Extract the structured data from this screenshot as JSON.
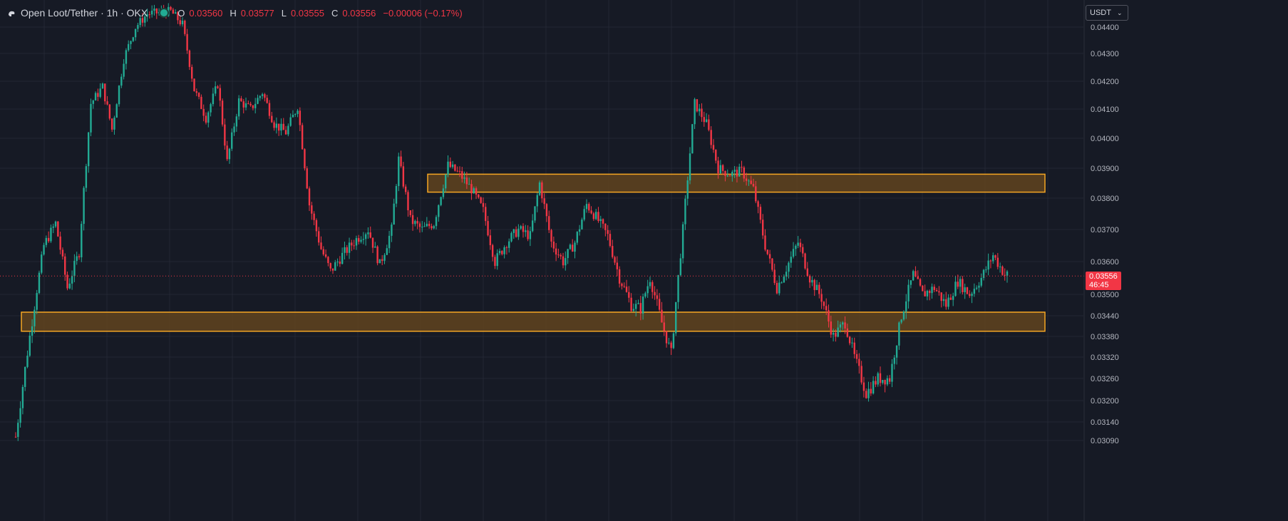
{
  "header": {
    "symbol": "Open Loot/Tether · 1h · OKX",
    "ohlc": [
      {
        "key": "O",
        "value": "0.03560"
      },
      {
        "key": "H",
        "value": "0.03577"
      },
      {
        "key": "L",
        "value": "0.03555"
      },
      {
        "key": "C",
        "value": "0.03556"
      }
    ],
    "change": "−0.00006 (−0.17%)",
    "logo_icon": "tradingview-cloud-icon",
    "status_color": "#22ab94"
  },
  "toolbar": {
    "currency_label": "USDT",
    "chevron_icon": "chevron-down-icon"
  },
  "last_price": {
    "value": "0.03556",
    "countdown": "46:45",
    "color": "#f23645"
  },
  "colors": {
    "up": "#22ab94",
    "down": "#f23645",
    "background": "#161a25",
    "zone_border": "#f5a623",
    "zone_fill": "#6b4a1d"
  },
  "chart_data": {
    "type": "candlestick",
    "interval": "1h",
    "y_axis": {
      "ticks": [
        0.044,
        0.043,
        0.042,
        0.041,
        0.04,
        0.039,
        0.038,
        0.037,
        0.036,
        0.035,
        0.0344,
        0.0338,
        0.0332,
        0.0326,
        0.032,
        0.0314,
        0.0309
      ],
      "tick_labels": [
        "0.04400",
        "0.04300",
        "0.04200",
        "0.04100",
        "0.04000",
        "0.03900",
        "0.03800",
        "0.03700",
        "0.03600",
        "0.03500",
        "0.03440",
        "0.03380",
        "0.03320",
        "0.03260",
        "0.03200",
        "0.03140",
        "0.03090"
      ]
    },
    "grid": true,
    "zones": [
      {
        "name": "resistance",
        "low": 0.0382,
        "high": 0.0388
      },
      {
        "name": "support",
        "low": 0.03395,
        "high": 0.0345
      }
    ],
    "last_price": 0.03556,
    "price_path": [
      [
        0,
        0.031
      ],
      [
        6,
        0.0338
      ],
      [
        12,
        0.0365
      ],
      [
        17,
        0.0372
      ],
      [
        22,
        0.0352
      ],
      [
        27,
        0.0363
      ],
      [
        32,
        0.0412
      ],
      [
        37,
        0.0418
      ],
      [
        41,
        0.0403
      ],
      [
        46,
        0.0428
      ],
      [
        51,
        0.044
      ],
      [
        56,
        0.0445
      ],
      [
        66,
        0.0446
      ],
      [
        71,
        0.0441
      ],
      [
        76,
        0.0417
      ],
      [
        81,
        0.0407
      ],
      [
        86,
        0.0419
      ],
      [
        90,
        0.0392
      ],
      [
        95,
        0.0413
      ],
      [
        100,
        0.041
      ],
      [
        105,
        0.0416
      ],
      [
        110,
        0.0405
      ],
      [
        115,
        0.0402
      ],
      [
        120,
        0.0411
      ],
      [
        125,
        0.0378
      ],
      [
        130,
        0.0364
      ],
      [
        134,
        0.0357
      ],
      [
        139,
        0.0362
      ],
      [
        145,
        0.0367
      ],
      [
        150,
        0.037
      ],
      [
        155,
        0.0359
      ],
      [
        160,
        0.037
      ],
      [
        163,
        0.0393
      ],
      [
        168,
        0.0373
      ],
      [
        173,
        0.037
      ],
      [
        178,
        0.0372
      ],
      [
        184,
        0.0391
      ],
      [
        189,
        0.0388
      ],
      [
        194,
        0.0383
      ],
      [
        199,
        0.0376
      ],
      [
        204,
        0.036
      ],
      [
        209,
        0.0366
      ],
      [
        214,
        0.037
      ],
      [
        219,
        0.0368
      ],
      [
        223,
        0.0385
      ],
      [
        228,
        0.0366
      ],
      [
        233,
        0.036
      ],
      [
        238,
        0.0366
      ],
      [
        243,
        0.0378
      ],
      [
        247,
        0.0374
      ],
      [
        252,
        0.0368
      ],
      [
        257,
        0.0355
      ],
      [
        262,
        0.0347
      ],
      [
        266,
        0.0346
      ],
      [
        270,
        0.0355
      ],
      [
        275,
        0.0342
      ],
      [
        279,
        0.0333
      ],
      [
        284,
        0.037
      ],
      [
        289,
        0.0412
      ],
      [
        294,
        0.0405
      ],
      [
        299,
        0.039
      ],
      [
        304,
        0.0388
      ],
      [
        309,
        0.0389
      ],
      [
        314,
        0.0383
      ],
      [
        319,
        0.0365
      ],
      [
        324,
        0.0352
      ],
      [
        328,
        0.0358
      ],
      [
        333,
        0.0366
      ],
      [
        338,
        0.0355
      ],
      [
        343,
        0.0349
      ],
      [
        348,
        0.0338
      ],
      [
        353,
        0.0342
      ],
      [
        357,
        0.0332
      ],
      [
        362,
        0.0322
      ],
      [
        367,
        0.0326
      ],
      [
        372,
        0.0326
      ],
      [
        377,
        0.0344
      ],
      [
        382,
        0.0356
      ],
      [
        386,
        0.035
      ],
      [
        391,
        0.0352
      ],
      [
        396,
        0.0347
      ],
      [
        401,
        0.0354
      ],
      [
        406,
        0.035
      ],
      [
        411,
        0.0355
      ],
      [
        416,
        0.0362
      ],
      [
        421,
        0.0356
      ]
    ]
  }
}
